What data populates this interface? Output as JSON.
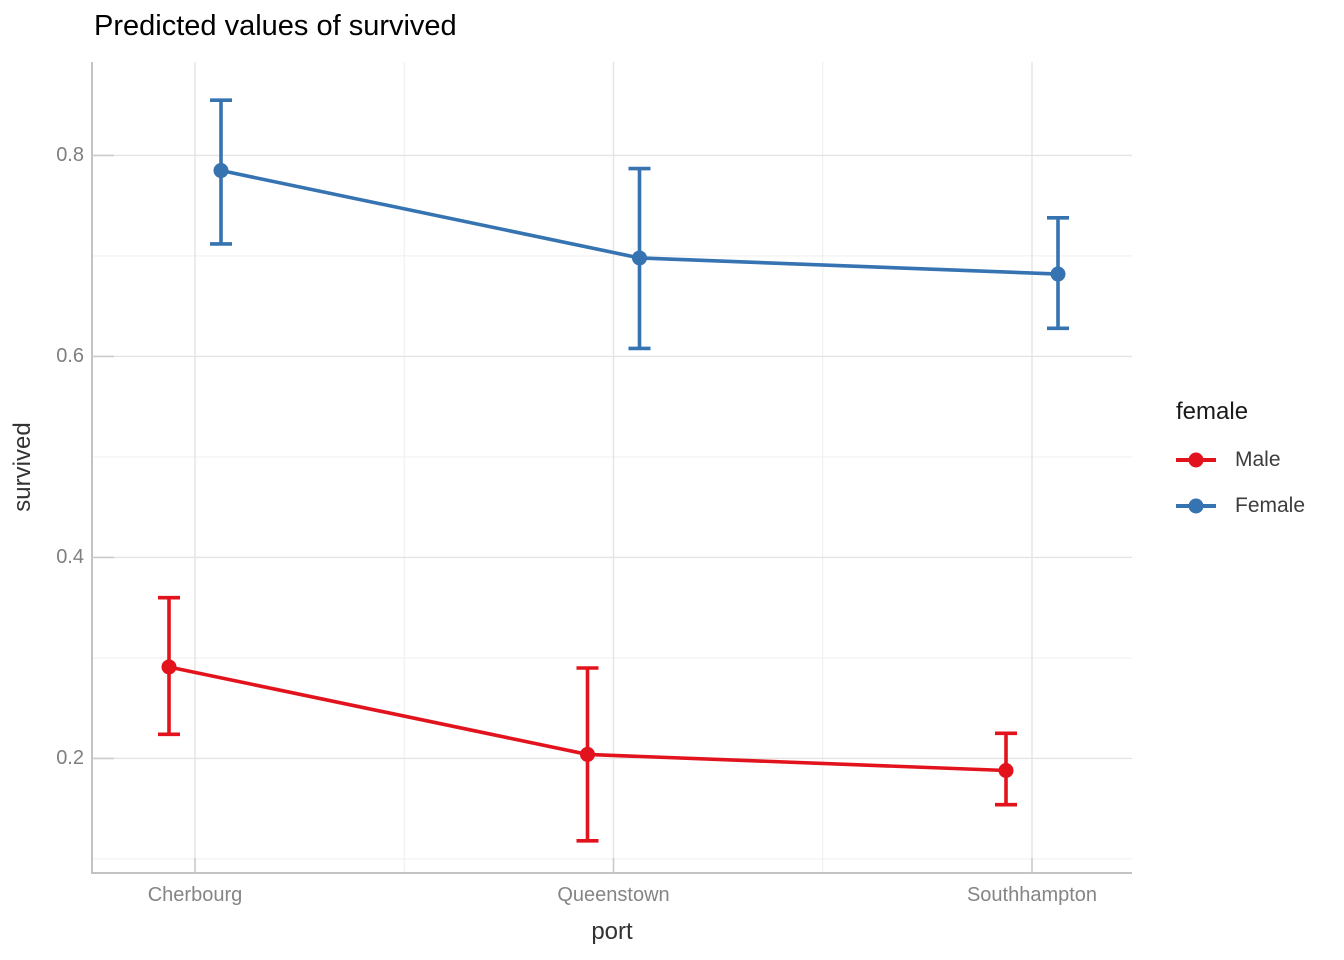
{
  "title": "Predicted values of survived",
  "axes": {
    "x_label": "port",
    "y_label": "survived",
    "x_categories": [
      "Cherbourg",
      "Queenstown",
      "Southhampton"
    ],
    "y_tick_labels": [
      "0.2",
      "0.4",
      "0.6",
      "0.8"
    ]
  },
  "legend": {
    "title": "female",
    "entries": [
      {
        "label": "Male",
        "color": "#E2131D"
      },
      {
        "label": "Female",
        "color": "#3573B1"
      }
    ]
  },
  "colors": {
    "male": "#E2131D",
    "female": "#3573B1",
    "grid_major": "#e4e4e4",
    "grid_minor": "#f0f0f0",
    "axis_line": "#c3c3c3",
    "tick_mark": "#cccccc"
  },
  "chart_data": {
    "type": "line",
    "title": "Predicted values of survived",
    "xlabel": "port",
    "ylabel": "survived",
    "categories": [
      "Cherbourg",
      "Queenstown",
      "Southhampton"
    ],
    "series": [
      {
        "name": "Male",
        "color": "#E2131D",
        "values": [
          0.291,
          0.204,
          0.188
        ],
        "ci_low": [
          0.224,
          0.118,
          0.154
        ],
        "ci_high": [
          0.36,
          0.29,
          0.225
        ]
      },
      {
        "name": "Female",
        "color": "#3573B1",
        "values": [
          0.785,
          0.698,
          0.682
        ],
        "ci_low": [
          0.712,
          0.608,
          0.628
        ],
        "ci_high": [
          0.855,
          0.787,
          0.738
        ]
      }
    ],
    "ylim": [
      0.086,
      0.893
    ],
    "y_major_ticks": [
      0.2,
      0.4,
      0.6,
      0.8
    ],
    "y_minor_ticks": [
      0.1,
      0.3,
      0.5,
      0.7
    ],
    "error_bars": true,
    "grid": true,
    "legend_title": "female",
    "legend_position": "right"
  }
}
